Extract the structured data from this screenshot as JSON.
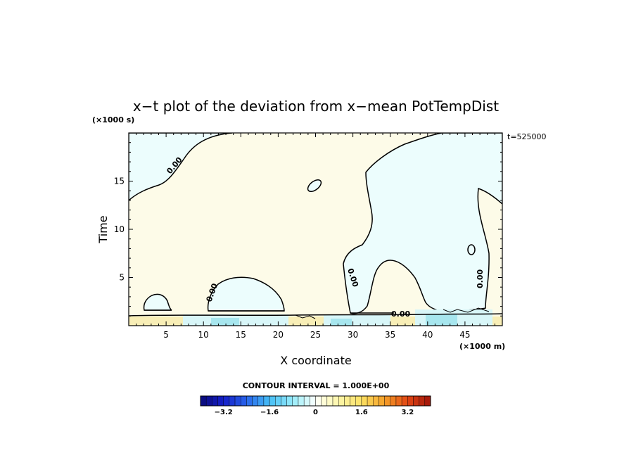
{
  "chart_data": {
    "type": "heatmap",
    "title": "x−t plot of the deviation from x−mean PotTempDist",
    "xlabel": "X coordinate",
    "ylabel": "Time",
    "x_unit": "(×1000 m)",
    "y_unit": "(×1000 s)",
    "time_annotation": "t=525000",
    "xlim": [
      0,
      50
    ],
    "ylim": [
      0,
      20
    ],
    "x_ticks": [
      5,
      10,
      15,
      20,
      25,
      30,
      35,
      40,
      45
    ],
    "y_ticks": [
      5,
      10,
      15
    ],
    "contour_interval_label": "CONTOUR INTERVAL = 1.000E+00",
    "contour_labels": [
      "0.00",
      "0.00",
      "0.00",
      "0.00",
      "0.00"
    ],
    "colorbar": {
      "min": -4.0,
      "max": 4.0,
      "step": 0.2,
      "tick_values": [
        -3.2,
        -1.6,
        0,
        1.6,
        3.2
      ],
      "tick_labels": [
        "−3.2",
        "−1.6",
        "0",
        "1.6",
        "3.2"
      ]
    },
    "regions": [
      {
        "name": "positive",
        "color": "#fdfbe8",
        "approx_value": 0.1
      },
      {
        "name": "negative",
        "color": "#ecfdfd",
        "approx_value": -0.1
      }
    ],
    "colors": {
      "positive_field": "#fdfbe8",
      "negative_field": "#ecfdfd",
      "surface_warm": "#f8eeb6",
      "surface_cool": "#a7e6ee"
    }
  }
}
